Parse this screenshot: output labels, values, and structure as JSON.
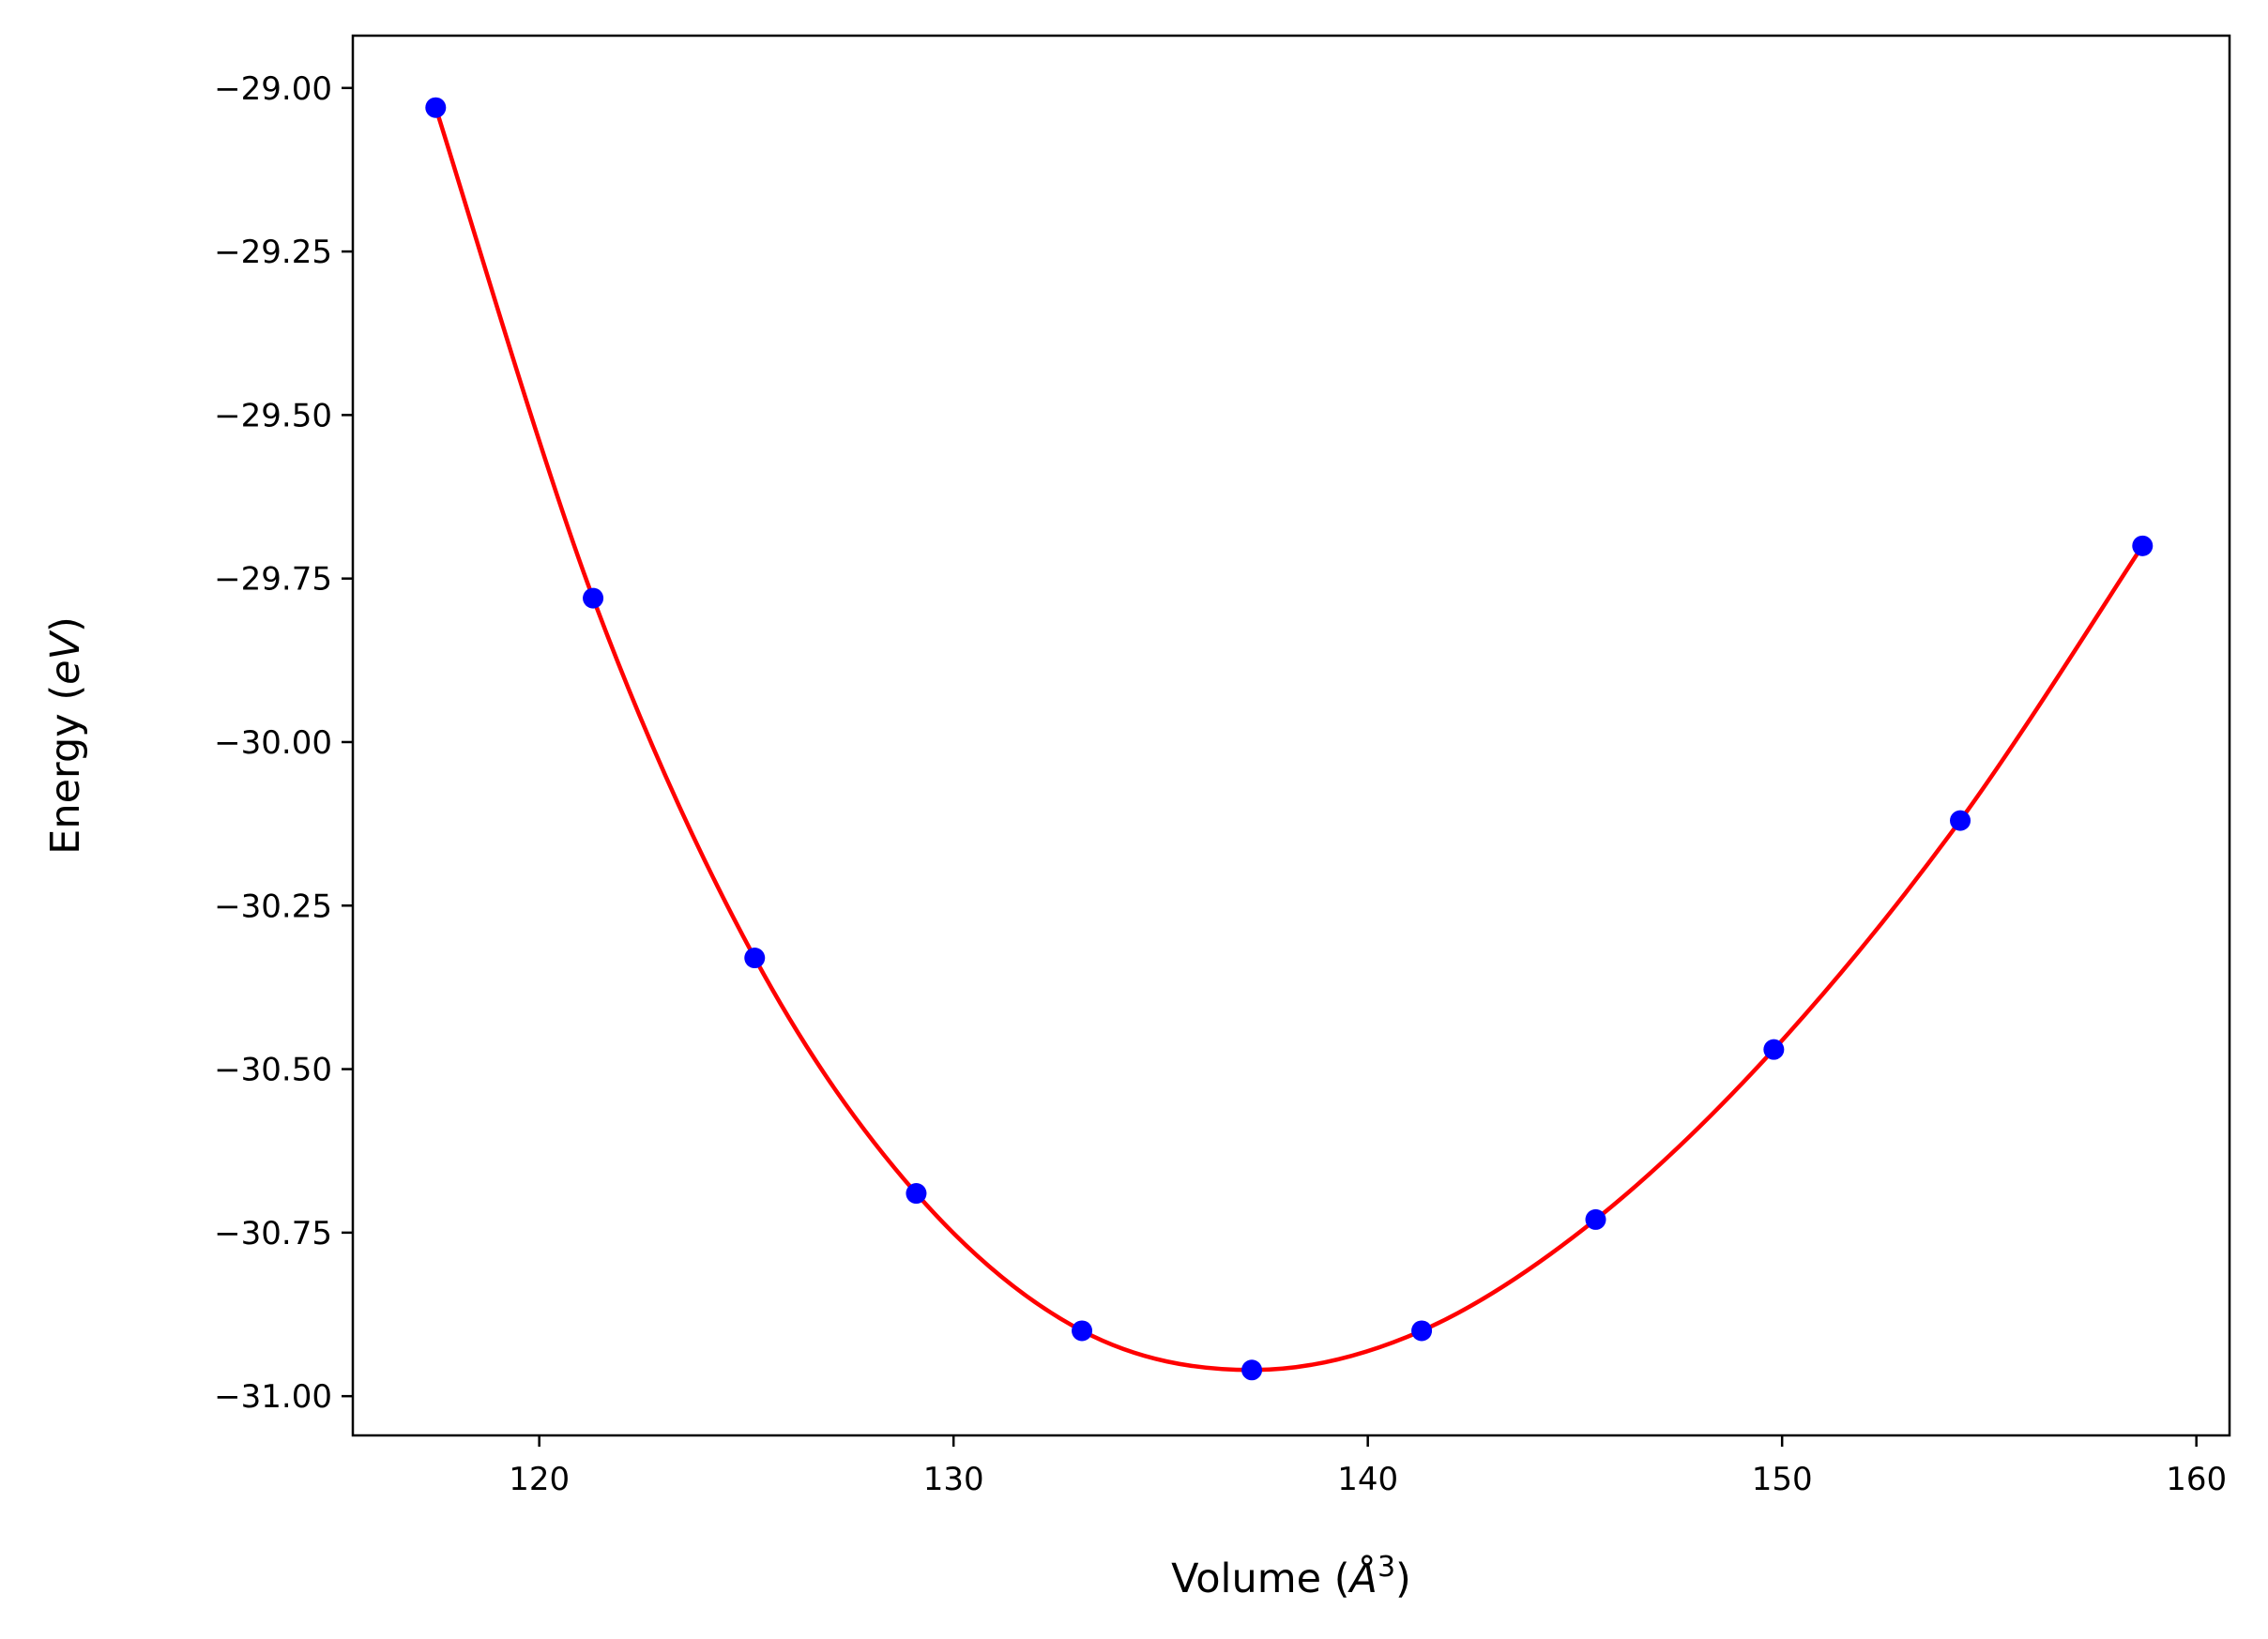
{
  "chart_data": {
    "type": "line",
    "xlabel": "Volume (",
    "xlabel_unit": "Å",
    "xlabel_exp": "3",
    "xlabel_close": ")",
    "ylabel": "Energy (",
    "ylabel_unit": "eV",
    "ylabel_close": ")",
    "xlim": [
      115.5,
      160.8
    ],
    "ylim": [
      -31.06,
      -28.92
    ],
    "xticks": [
      120,
      130,
      140,
      150,
      160
    ],
    "xtick_labels": [
      "120",
      "130",
      "140",
      "150",
      "160"
    ],
    "yticks": [
      -29.0,
      -29.25,
      -29.5,
      -29.75,
      -30.0,
      -30.25,
      -30.5,
      -30.75,
      -31.0
    ],
    "ytick_labels": [
      "−29.00",
      "−29.25",
      "−29.50",
      "−29.75",
      "−30.00",
      "−30.25",
      "−30.50",
      "−30.75",
      "−31.00"
    ],
    "grid": false,
    "series": [
      {
        "kind": "scatter",
        "color": "#0000ff",
        "x": [
          117.5,
          121.3,
          125.2,
          129.1,
          133.1,
          137.2,
          141.3,
          145.5,
          149.8,
          154.3,
          158.7
        ],
        "y": [
          -29.03,
          -29.78,
          -30.33,
          -30.69,
          -30.9,
          -30.96,
          -30.9,
          -30.73,
          -30.47,
          -30.12,
          -29.7
        ]
      },
      {
        "kind": "fit-curve",
        "color": "#ff0000",
        "fit_min_x": 137.4,
        "fit_min_y": -30.962
      }
    ]
  }
}
